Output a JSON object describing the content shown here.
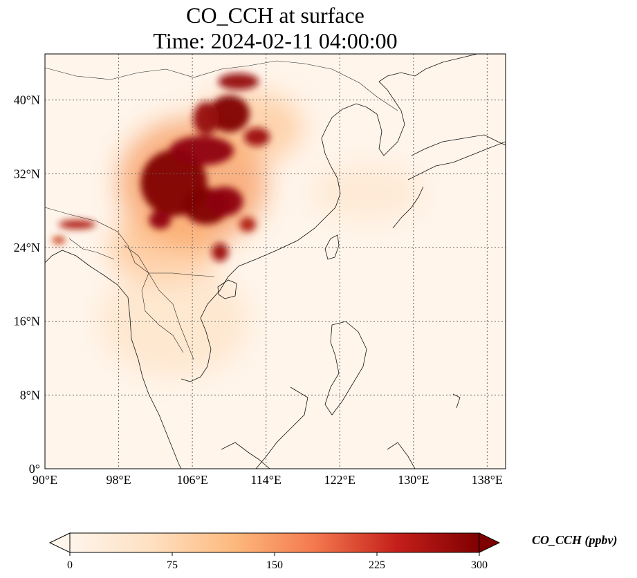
{
  "title_line1": "CO_CCH at surface",
  "title_line2": "Time: 2024-02-11 04:00:00",
  "map": {
    "lon_range": [
      90,
      140
    ],
    "lat_range": [
      0,
      45
    ],
    "lon_ticks": [
      90,
      98,
      106,
      114,
      122,
      130,
      138
    ],
    "lon_tick_labels": [
      "90°E",
      "98°E",
      "106°E",
      "114°E",
      "122°E",
      "130°E",
      "138°E"
    ],
    "lat_ticks": [
      0,
      8,
      16,
      24,
      32,
      40
    ],
    "lat_tick_labels": [
      "0°",
      "8°N",
      "16°N",
      "24°N",
      "32°N",
      "40°N"
    ],
    "gridlines": true,
    "colormap": [
      "#fff5eb",
      "#fdd9b4",
      "#fdae6b",
      "#f16913",
      "#d94801",
      "#a50f15",
      "#7f0000"
    ]
  },
  "colorbar": {
    "label": "CO_CCH (ppbv)",
    "range": [
      0,
      300
    ],
    "ticks": [
      0,
      75,
      150,
      225,
      300
    ],
    "tick_labels": [
      "0",
      "75",
      "150",
      "225",
      "300"
    ],
    "extend": "both"
  },
  "plumes": [
    {
      "lon": 104,
      "lat": 31,
      "rlon": 3.6,
      "rlat": 3.6,
      "level": 300
    },
    {
      "lon": 107.5,
      "lat": 28.5,
      "rlon": 2.5,
      "rlat": 2.0,
      "level": 300
    },
    {
      "lon": 109.5,
      "lat": 29,
      "rlon": 2.0,
      "rlat": 1.6,
      "level": 280
    },
    {
      "lon": 107,
      "lat": 34.5,
      "rlon": 3.5,
      "rlat": 1.6,
      "level": 280
    },
    {
      "lon": 110,
      "lat": 38.5,
      "rlon": 2.2,
      "rlat": 2.0,
      "level": 300
    },
    {
      "lon": 107.5,
      "lat": 38,
      "rlon": 1.4,
      "rlat": 1.8,
      "level": 270
    },
    {
      "lon": 111,
      "lat": 42,
      "rlon": 2.2,
      "rlat": 0.9,
      "level": 270
    },
    {
      "lon": 113,
      "lat": 36,
      "rlon": 1.4,
      "rlat": 1.0,
      "level": 260
    },
    {
      "lon": 102.5,
      "lat": 27,
      "rlon": 1.2,
      "rlat": 1.0,
      "level": 280
    },
    {
      "lon": 109,
      "lat": 23.5,
      "rlon": 0.9,
      "rlat": 1.0,
      "level": 260
    },
    {
      "lon": 112,
      "lat": 26.5,
      "rlon": 0.9,
      "rlat": 0.8,
      "level": 240
    },
    {
      "lon": 93.5,
      "lat": 26.5,
      "rlon": 2.0,
      "rlat": 0.5,
      "level": 240
    },
    {
      "lon": 91.5,
      "lat": 24.8,
      "rlon": 0.7,
      "rlat": 0.4,
      "level": 220
    },
    {
      "lon": 106,
      "lat": 31,
      "rlon": 8,
      "rlat": 7,
      "level": 140
    },
    {
      "lon": 103,
      "lat": 24,
      "rlon": 6,
      "rlat": 4,
      "level": 100
    },
    {
      "lon": 104,
      "lat": 16,
      "rlon": 8,
      "rlat": 6,
      "level": 45
    },
    {
      "lon": 125,
      "lat": 30,
      "rlon": 6,
      "rlat": 3,
      "level": 35
    },
    {
      "lon": 112,
      "lat": 37,
      "rlon": 6,
      "rlat": 4,
      "level": 90
    }
  ]
}
